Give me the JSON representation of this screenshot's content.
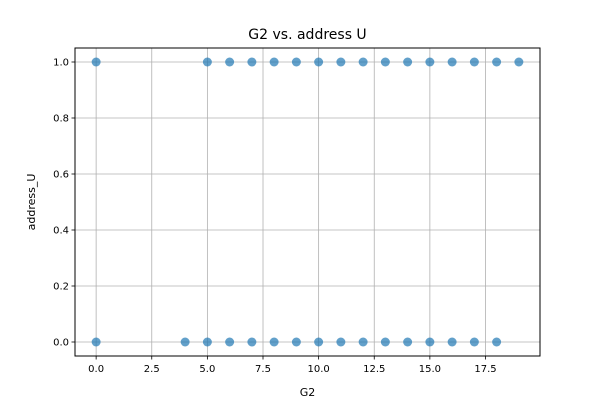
{
  "chart_data": {
    "type": "scatter",
    "title": "G2 vs. address U",
    "xlabel": "G2",
    "ylabel": "address_U",
    "xlim": [
      -0.95,
      19.95
    ],
    "ylim": [
      -0.05,
      1.05
    ],
    "xticks": [
      0.0,
      2.5,
      5.0,
      7.5,
      10.0,
      12.5,
      15.0,
      17.5
    ],
    "xtick_labels": [
      "0.0",
      "2.5",
      "5.0",
      "7.5",
      "10.0",
      "12.5",
      "15.0",
      "17.5"
    ],
    "yticks": [
      0.0,
      0.2,
      0.4,
      0.6,
      0.8,
      1.0
    ],
    "ytick_labels": [
      "0.0",
      "0.2",
      "0.4",
      "0.6",
      "0.8",
      "1.0"
    ],
    "grid": true,
    "marker_color": "#1f77b4",
    "points": [
      {
        "x": 0,
        "y": 1
      },
      {
        "x": 5,
        "y": 1
      },
      {
        "x": 6,
        "y": 1
      },
      {
        "x": 7,
        "y": 1
      },
      {
        "x": 8,
        "y": 1
      },
      {
        "x": 9,
        "y": 1
      },
      {
        "x": 10,
        "y": 1
      },
      {
        "x": 11,
        "y": 1
      },
      {
        "x": 12,
        "y": 1
      },
      {
        "x": 13,
        "y": 1
      },
      {
        "x": 14,
        "y": 1
      },
      {
        "x": 15,
        "y": 1
      },
      {
        "x": 16,
        "y": 1
      },
      {
        "x": 17,
        "y": 1
      },
      {
        "x": 18,
        "y": 1
      },
      {
        "x": 19,
        "y": 1
      },
      {
        "x": 0,
        "y": 0
      },
      {
        "x": 4,
        "y": 0
      },
      {
        "x": 5,
        "y": 0
      },
      {
        "x": 6,
        "y": 0
      },
      {
        "x": 7,
        "y": 0
      },
      {
        "x": 8,
        "y": 0
      },
      {
        "x": 9,
        "y": 0
      },
      {
        "x": 10,
        "y": 0
      },
      {
        "x": 11,
        "y": 0
      },
      {
        "x": 12,
        "y": 0
      },
      {
        "x": 13,
        "y": 0
      },
      {
        "x": 14,
        "y": 0
      },
      {
        "x": 15,
        "y": 0
      },
      {
        "x": 16,
        "y": 0
      },
      {
        "x": 17,
        "y": 0
      },
      {
        "x": 18,
        "y": 0
      }
    ]
  }
}
